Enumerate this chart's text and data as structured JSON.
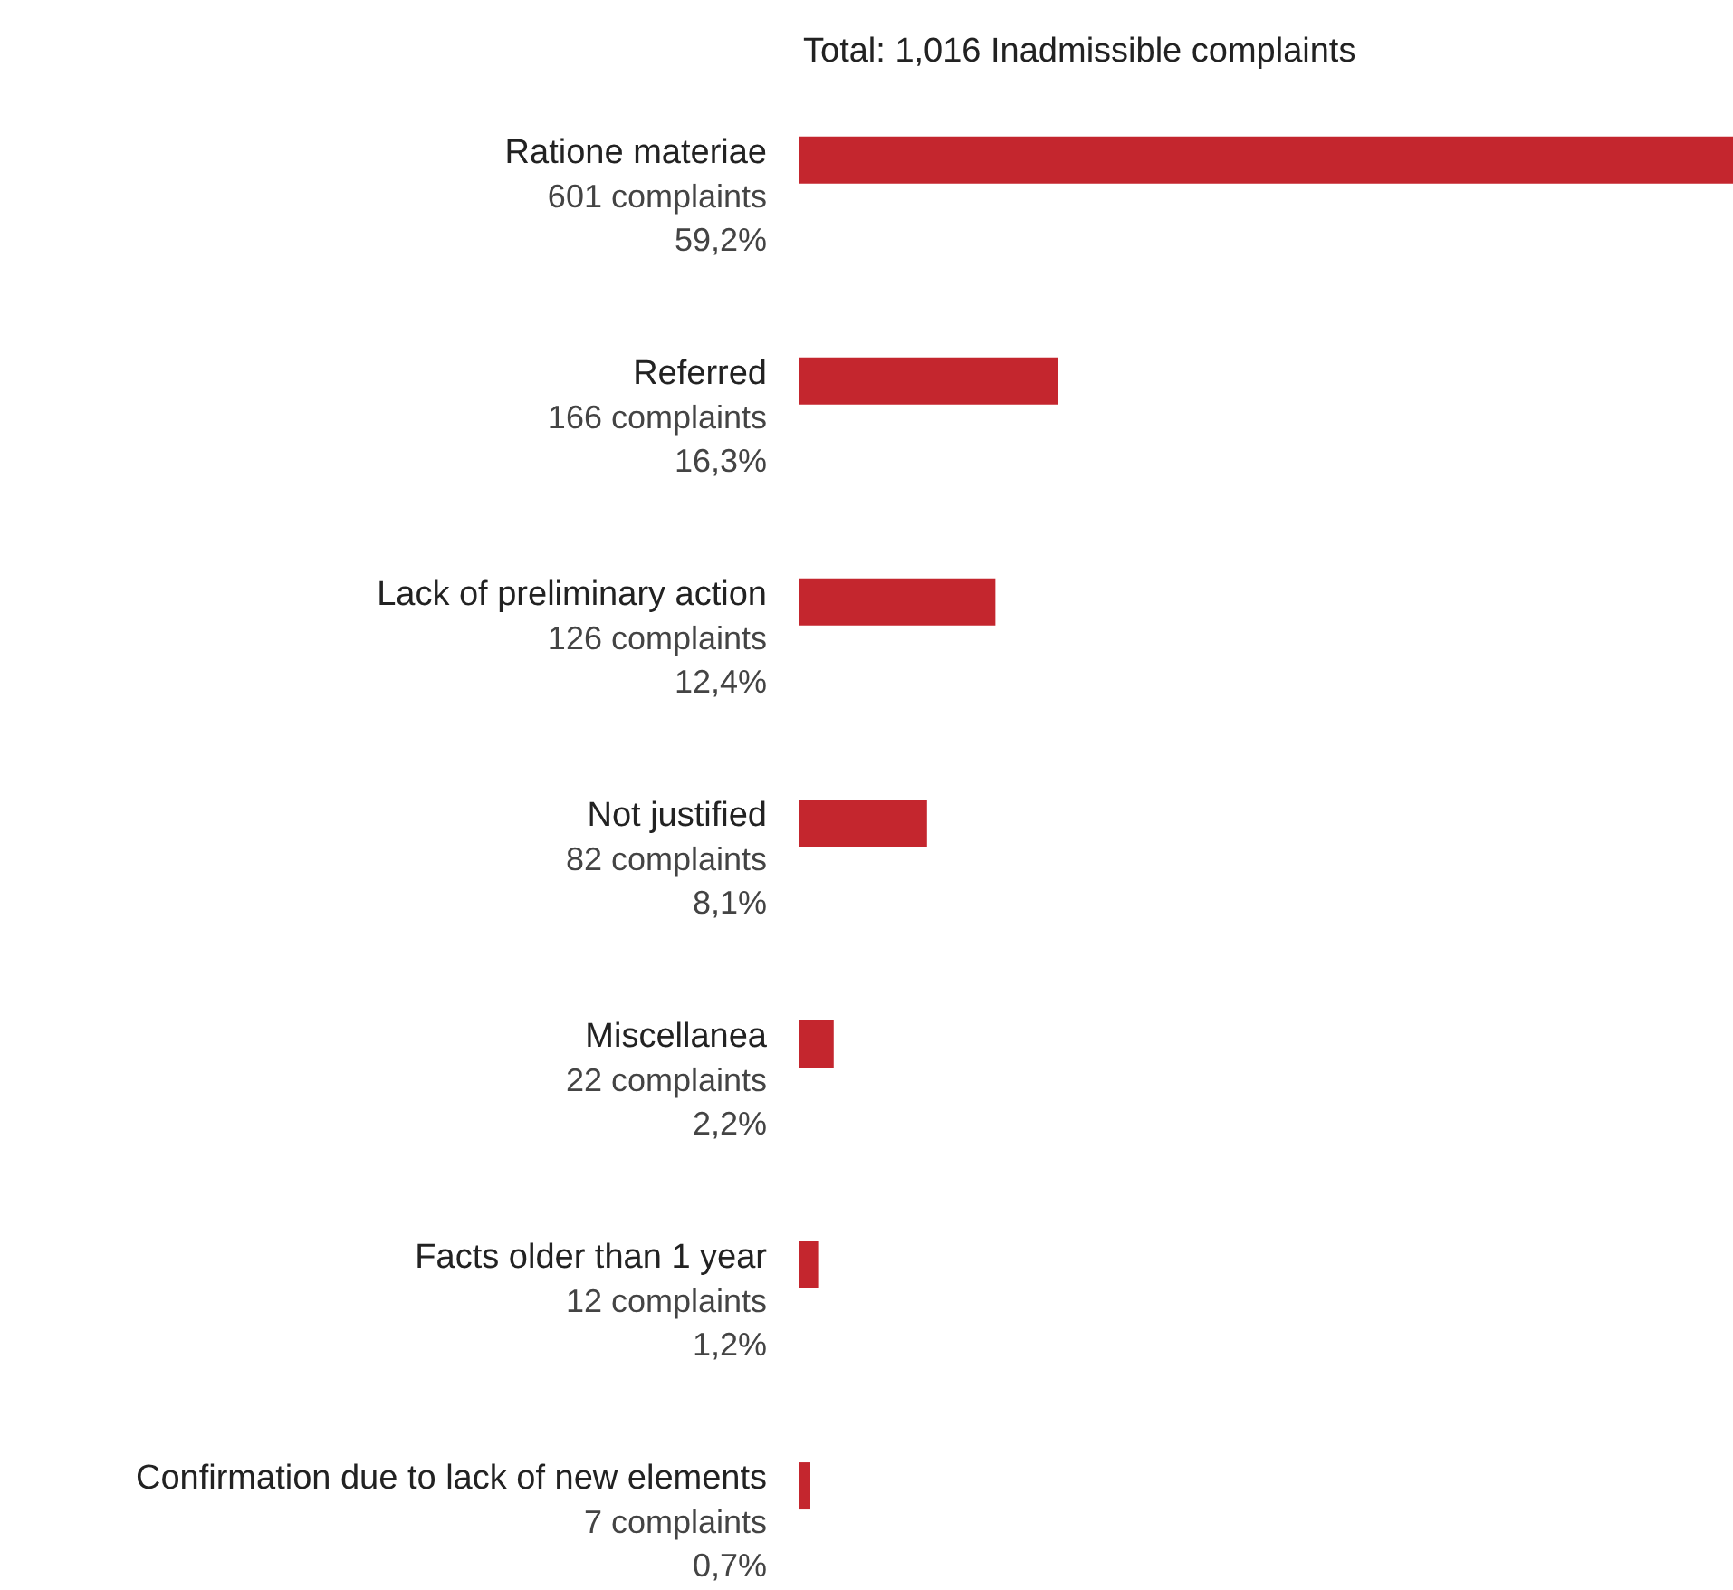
{
  "chart_data": {
    "type": "bar",
    "orientation": "horizontal",
    "title": "Total: 1,016 Inadmissible complaints",
    "categories": [
      "Ratione materiae",
      "Referred",
      "Lack of preliminary action",
      "Not justified",
      "Miscellanea",
      "Facts older than 1 year",
      "Confirmation due to lack of new elements"
    ],
    "values": [
      601,
      166,
      126,
      82,
      22,
      12,
      7
    ],
    "value_labels": [
      "601 complaints",
      "166 complaints",
      "126 complaints",
      "82 complaints",
      "22 complaints",
      "12 complaints",
      "7 complaints"
    ],
    "annotations": [
      "59,2%",
      "16,3%",
      "12,4%",
      "8,1%",
      "2,2%",
      "1,2%",
      "0,7%"
    ],
    "color": "#c4262e",
    "grid": false
  }
}
